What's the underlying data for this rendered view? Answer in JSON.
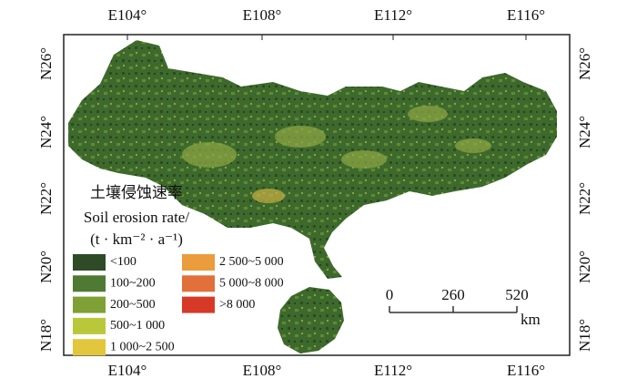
{
  "map": {
    "longitude_labels": [
      "E104°",
      "E108°",
      "E112°",
      "E116°"
    ],
    "latitude_labels": [
      "N26°",
      "N24°",
      "N22°",
      "N20°",
      "N18°"
    ],
    "legend": {
      "title": [
        "土壤侵蚀速率",
        "Soil erosion rate/",
        "(t · km⁻² · a⁻¹)"
      ],
      "items": [
        {
          "label": "<100",
          "color": "#2e4a26"
        },
        {
          "label": "100~200",
          "color": "#4f7a33"
        },
        {
          "label": "200~500",
          "color": "#7fa034"
        },
        {
          "label": "500~1 000",
          "color": "#b8c83a"
        },
        {
          "label": "1 000~2 500",
          "color": "#e2c63c"
        },
        {
          "label": "2 500~5 000",
          "color": "#eb9c3c"
        },
        {
          "label": "5 000~8 000",
          "color": "#e2703a"
        },
        {
          "label": ">8 000",
          "color": "#d63a27"
        }
      ]
    },
    "scale_bar": {
      "ticks": [
        "0",
        "260",
        "520"
      ],
      "unit": "km"
    }
  }
}
